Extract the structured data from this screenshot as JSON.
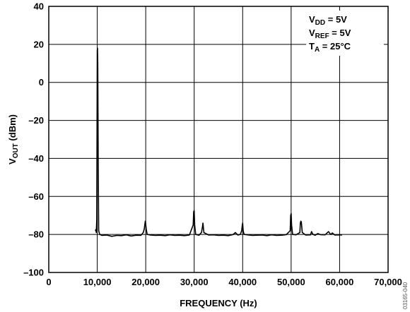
{
  "chart_data": {
    "type": "line",
    "xlabel": "FREQUENCY (Hz)",
    "ylabel": {
      "main": "V",
      "sub": "OUT",
      "rest": " (dBm)"
    },
    "xlim": [
      0,
      70000
    ],
    "ylim": [
      -100,
      40
    ],
    "x_ticks": [
      0,
      10000,
      20000,
      30000,
      40000,
      50000,
      60000,
      70000
    ],
    "x_tick_labels": [
      "0",
      "10,000",
      "20,000",
      "30,000",
      "40,000",
      "50,000",
      "60,000",
      "70,000"
    ],
    "y_ticks": [
      -100,
      -80,
      -60,
      -40,
      -20,
      0,
      20,
      40
    ],
    "y_tick_labels": [
      "–100",
      "–80",
      "–60",
      "–40",
      "–20",
      "0",
      "20",
      "40"
    ],
    "grid": true,
    "conditions": [
      {
        "main": "V",
        "sub": "DD",
        "rest": " = 5V"
      },
      {
        "main": "V",
        "sub": "REF",
        "rest": " = 5V"
      },
      {
        "main": "T",
        "sub": "A",
        "rest": " = 25°C"
      }
    ],
    "figure_id": "03165-040",
    "series": [
      {
        "color": "#000000",
        "x": [
          9600,
          9700,
          9800,
          9900,
          10000,
          10050,
          10100,
          10200,
          10300,
          10500,
          11000,
          12000,
          13000,
          14000,
          15000,
          16000,
          17000,
          18000,
          19000,
          19500,
          19700,
          19800,
          19900,
          20000,
          20100,
          20300,
          21000,
          22000,
          23000,
          24000,
          25000,
          26000,
          27000,
          28000,
          29000,
          29800,
          29900,
          30000,
          30100,
          30300,
          31000,
          31500,
          31700,
          31800,
          32000,
          33000,
          34000,
          35000,
          36000,
          37000,
          38000,
          38500,
          39000,
          39500,
          39800,
          39900,
          40000,
          40100,
          40300,
          41000,
          42000,
          43000,
          44000,
          45000,
          46000,
          47000,
          48000,
          49000,
          49800,
          49900,
          50000,
          50100,
          50300,
          51000,
          51800,
          51900,
          52000,
          52100,
          52300,
          53000,
          54000,
          54200,
          54500,
          55000,
          55500,
          56000,
          57000,
          57500,
          57700,
          58000,
          58200,
          58500,
          59000,
          60000,
          60500
        ],
        "y": [
          -78,
          -77.5,
          -79,
          -72,
          17,
          18,
          10,
          -40,
          -78,
          -80,
          -80.5,
          -80.3,
          -81,
          -80.5,
          -80.6,
          -80.2,
          -80.8,
          -80.4,
          -80.5,
          -79,
          -77,
          -75,
          -73,
          -74.5,
          -77,
          -80,
          -80.3,
          -80.5,
          -80.4,
          -80.6,
          -80.2,
          -80.5,
          -80.4,
          -80.6,
          -80.3,
          -75,
          -68,
          -67.5,
          -75,
          -80,
          -80.4,
          -79,
          -76,
          -74,
          -79,
          -80.3,
          -80.2,
          -80.5,
          -80.4,
          -80.6,
          -80.1,
          -79,
          -80.3,
          -80,
          -78,
          -75.5,
          -74,
          -78,
          -80,
          -80.2,
          -80.5,
          -80.4,
          -80.3,
          -80.6,
          -80.2,
          -80.5,
          -80.4,
          -80.1,
          -78,
          -70,
          -69,
          -75,
          -80,
          -80.2,
          -79,
          -74,
          -73,
          -73.5,
          -79,
          -80.3,
          -80.2,
          -78.5,
          -80,
          -80.4,
          -79.5,
          -80.1,
          -80.2,
          -79,
          -78.5,
          -79.5,
          -80,
          -79.2,
          -80.3,
          -80.2,
          -80.3
        ]
      }
    ]
  }
}
